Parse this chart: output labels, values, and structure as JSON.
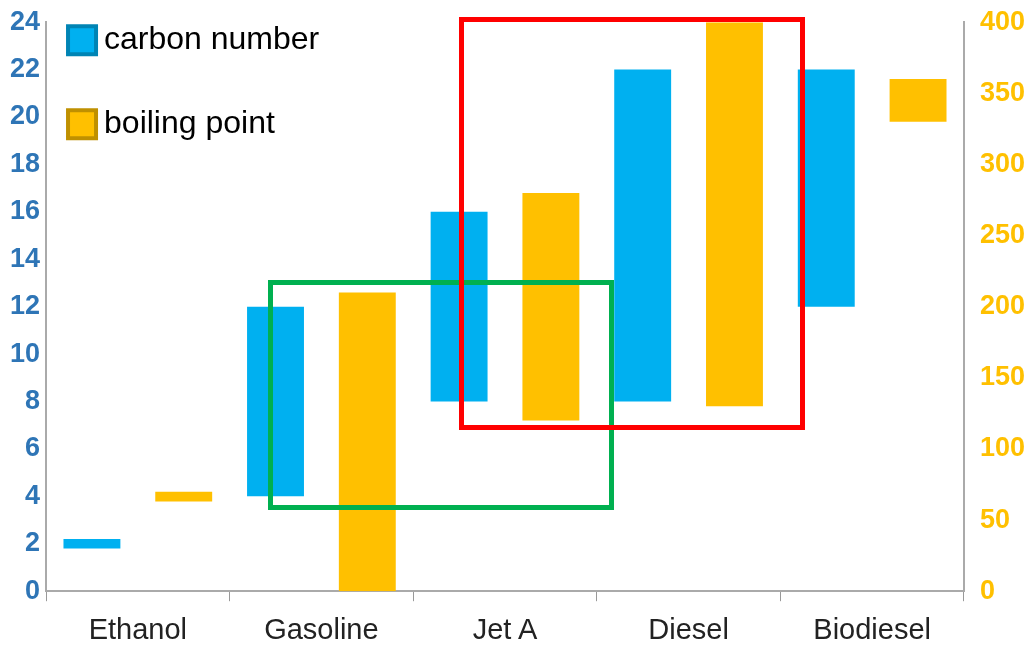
{
  "chart_data": {
    "type": "bar",
    "categories": [
      "Ethanol",
      "Gasoline",
      "Jet A",
      "Diesel",
      "Biodiesel"
    ],
    "series": [
      {
        "name": "carbon number",
        "color": "#00b0f0",
        "base": [
          1.8,
          4,
          8,
          8,
          12
        ],
        "values": [
          0.4,
          8,
          8,
          14,
          10
        ]
      },
      {
        "name": "boiling point",
        "color": "#ffc000",
        "axis": "y2",
        "base": [
          63,
          0,
          120,
          130,
          330
        ],
        "values": [
          7,
          210,
          160,
          270,
          30
        ]
      }
    ],
    "ylim": [
      0,
      24
    ],
    "yticks": [
      0,
      2,
      4,
      6,
      8,
      10,
      12,
      14,
      16,
      18,
      20,
      22,
      24
    ],
    "y2lim": [
      0,
      400
    ],
    "y2ticks": [
      0,
      50,
      100,
      150,
      200,
      250,
      300,
      350,
      400
    ],
    "grid": false,
    "legend": "top left"
  }
}
